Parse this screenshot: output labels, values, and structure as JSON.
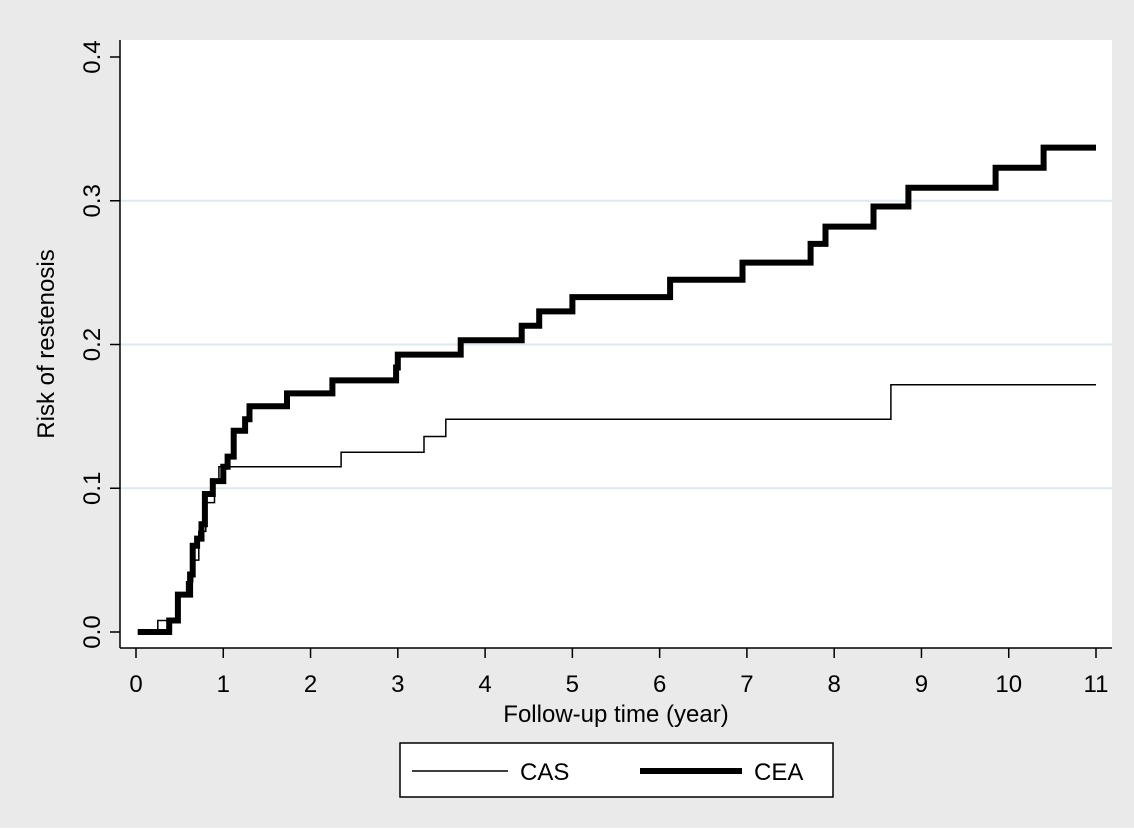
{
  "colors": {
    "outer_background": "#eaeaea",
    "plot_background": "#ffffff",
    "gridline": "#dde9ee",
    "axis": "#000000",
    "series": "#000000"
  },
  "chart_data": {
    "type": "line",
    "subtype": "step",
    "title": "",
    "xlabel": "Follow-up time (year)",
    "ylabel": "Risk of restenosis",
    "xlim": [
      0,
      11
    ],
    "ylim": [
      0,
      0.4
    ],
    "xticks": [
      "0",
      "1",
      "2",
      "3",
      "4",
      "5",
      "6",
      "7",
      "8",
      "9",
      "10",
      "11"
    ],
    "yticks": [
      "0.0",
      "0.1",
      "0.2",
      "0.3",
      "0.4"
    ],
    "grid": "horizontal",
    "legend": {
      "placement": "bottom",
      "entries": [
        "CAS",
        "CEA"
      ]
    },
    "series": [
      {
        "name": "CAS",
        "line": "thin",
        "points": [
          [
            0.02,
            0.0
          ],
          [
            0.25,
            0.008
          ],
          [
            0.5,
            0.025
          ],
          [
            0.58,
            0.035
          ],
          [
            0.65,
            0.05
          ],
          [
            0.72,
            0.07
          ],
          [
            0.8,
            0.09
          ],
          [
            0.9,
            0.104
          ],
          [
            0.95,
            0.115
          ],
          [
            2.35,
            0.125
          ],
          [
            3.3,
            0.136
          ],
          [
            3.55,
            0.148
          ],
          [
            8.65,
            0.172
          ],
          [
            11.0,
            0.172
          ]
        ]
      },
      {
        "name": "CEA",
        "line": "thick",
        "points": [
          [
            0.02,
            0.0
          ],
          [
            0.38,
            0.008
          ],
          [
            0.48,
            0.026
          ],
          [
            0.62,
            0.04
          ],
          [
            0.65,
            0.06
          ],
          [
            0.7,
            0.065
          ],
          [
            0.75,
            0.075
          ],
          [
            0.79,
            0.096
          ],
          [
            0.88,
            0.105
          ],
          [
            1.0,
            0.115
          ],
          [
            1.05,
            0.122
          ],
          [
            1.12,
            0.14
          ],
          [
            1.25,
            0.148
          ],
          [
            1.3,
            0.157
          ],
          [
            1.73,
            0.166
          ],
          [
            2.25,
            0.175
          ],
          [
            2.98,
            0.184
          ],
          [
            3.0,
            0.193
          ],
          [
            3.72,
            0.203
          ],
          [
            4.42,
            0.213
          ],
          [
            4.62,
            0.223
          ],
          [
            5.0,
            0.233
          ],
          [
            6.12,
            0.245
          ],
          [
            6.95,
            0.257
          ],
          [
            7.73,
            0.27
          ],
          [
            7.9,
            0.282
          ],
          [
            8.45,
            0.296
          ],
          [
            8.85,
            0.309
          ],
          [
            9.85,
            0.323
          ],
          [
            10.4,
            0.337
          ],
          [
            11.0,
            0.337
          ]
        ]
      }
    ]
  }
}
